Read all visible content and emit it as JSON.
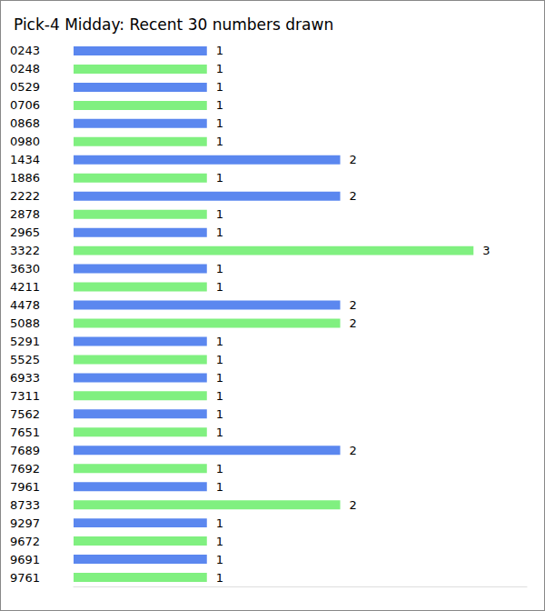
{
  "chart_data": {
    "type": "bar",
    "orientation": "horizontal",
    "title": "Pick-4 Midday: Recent 30 numbers drawn",
    "categories": [
      "0243",
      "0248",
      "0529",
      "0706",
      "0868",
      "0980",
      "1434",
      "1886",
      "2222",
      "2878",
      "2965",
      "3322",
      "3630",
      "4211",
      "4478",
      "5088",
      "5291",
      "5525",
      "6933",
      "7311",
      "7562",
      "7651",
      "7689",
      "7692",
      "7961",
      "8733",
      "9297",
      "9672",
      "9691",
      "9761"
    ],
    "values": [
      1,
      1,
      1,
      1,
      1,
      1,
      2,
      1,
      2,
      1,
      1,
      3,
      1,
      1,
      2,
      2,
      1,
      1,
      1,
      1,
      1,
      1,
      2,
      1,
      1,
      2,
      1,
      1,
      1,
      1
    ],
    "colors": [
      "#5b87ef",
      "#80f080",
      "#5b87ef",
      "#80f080",
      "#5b87ef",
      "#80f080",
      "#5b87ef",
      "#80f080",
      "#5b87ef",
      "#80f080",
      "#5b87ef",
      "#80f080",
      "#5b87ef",
      "#80f080",
      "#5b87ef",
      "#80f080",
      "#5b87ef",
      "#80f080",
      "#5b87ef",
      "#80f080",
      "#5b87ef",
      "#80f080",
      "#5b87ef",
      "#80f080",
      "#5b87ef",
      "#80f080",
      "#5b87ef",
      "#80f080",
      "#5b87ef",
      "#80f080"
    ],
    "xlim": [
      0,
      3.4
    ],
    "data_labels": true,
    "tick_labels": "y",
    "grid": false
  }
}
